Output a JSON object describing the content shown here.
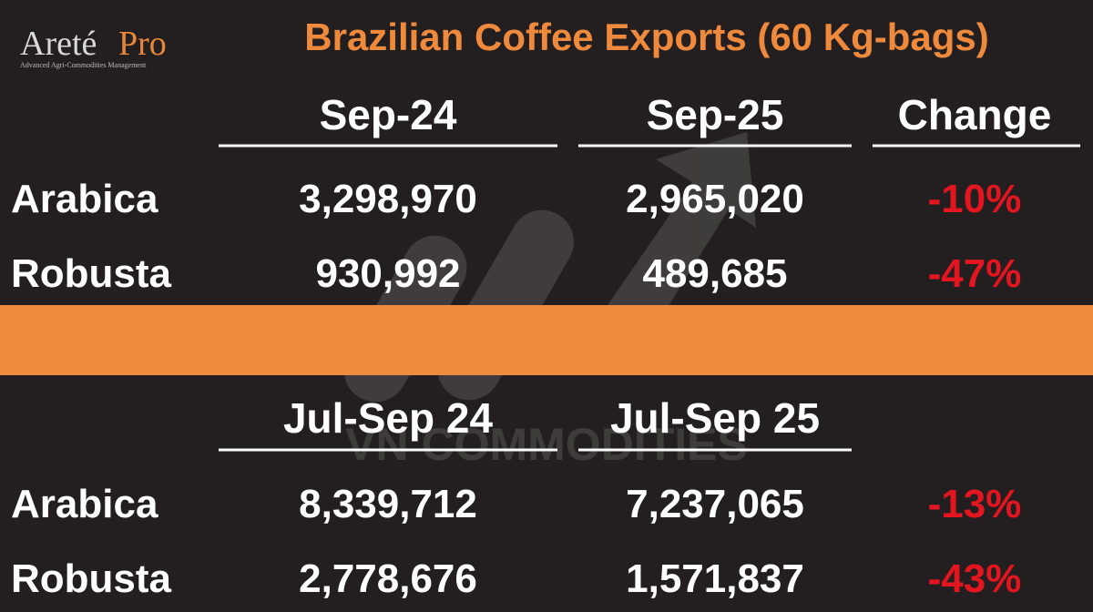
{
  "logo": {
    "name": "Areté",
    "suffix": "Pro",
    "tagline": "Advanced Agri-Commodities Management"
  },
  "title": "Brazilian Coffee Exports (60 Kg-bags)",
  "table1": {
    "headers": [
      "Sep-24",
      "Sep-25",
      "Change"
    ],
    "rows": [
      [
        "Arabica",
        "3,298,970",
        "2,965,020",
        "-10%"
      ],
      [
        "Robusta",
        "930,992",
        "489,685",
        "-47%"
      ]
    ]
  },
  "table2": {
    "headers": [
      "Jul-Sep 24",
      "Jul-Sep 25"
    ],
    "rows": [
      [
        "Arabica",
        "8,339,712",
        "7,237,065",
        "-13%"
      ],
      [
        "Robusta",
        "2,778,676",
        "1,571,837",
        "-43%"
      ]
    ]
  },
  "watermark": "VN COMMODITIES"
}
